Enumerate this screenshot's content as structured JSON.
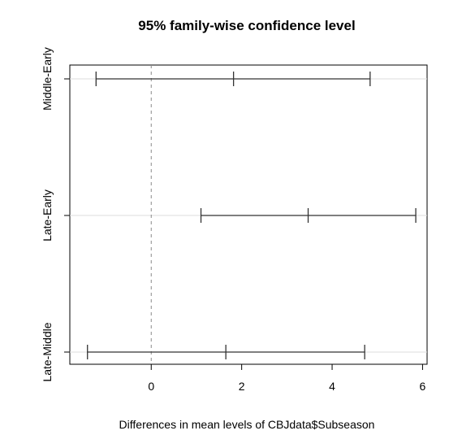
{
  "chart_data": {
    "type": "errorbar",
    "title": "95% family-wise confidence level",
    "xlabel": "Differences in mean levels of CBJdata$Subseason",
    "ylabel": "",
    "xlim": [
      -1.8,
      6.1
    ],
    "x_ticks": [
      0,
      2,
      4,
      6
    ],
    "reference_line_x": 0,
    "grid": true,
    "comparisons": [
      {
        "label": "Middle-Early",
        "lwr": -1.22,
        "diff": 1.82,
        "upr": 4.84
      },
      {
        "label": "Late-Early",
        "lwr": 1.1,
        "diff": 3.47,
        "upr": 5.85
      },
      {
        "label": "Late-Middle",
        "lwr": -1.41,
        "diff": 1.65,
        "upr": 4.72
      }
    ]
  }
}
